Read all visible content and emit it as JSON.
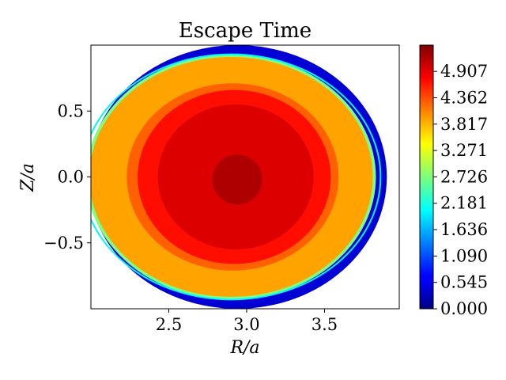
{
  "chart_data": {
    "type": "heatmap",
    "title": "Escape Time",
    "xlabel": "R/a",
    "ylabel": "Z/a",
    "xlim": [
      2.0,
      3.98
    ],
    "ylim": [
      -1.0,
      1.0
    ],
    "xticks": [
      2.5,
      3.0,
      3.5
    ],
    "xtick_labels": [
      "2.5",
      "3.0",
      "3.5"
    ],
    "yticks": [
      0.5,
      0.0,
      -0.5
    ],
    "ytick_labels": [
      "0.5",
      "0.0",
      "−0.5"
    ],
    "colormap": "jet",
    "colorbar": {
      "min": 0.0,
      "max": 5.45,
      "ticks": [
        0.0,
        0.545,
        1.09,
        1.636,
        2.181,
        2.726,
        3.271,
        3.817,
        4.362,
        4.907
      ],
      "tick_labels": [
        "0.000",
        "0.545",
        "1.090",
        "1.636",
        "2.181",
        "2.726",
        "3.271",
        "3.817",
        "4.362",
        "4.907"
      ]
    },
    "field": {
      "description_free": true,
      "outer_boundary": {
        "center": [
          2.94,
          0.0
        ],
        "radius_R": 0.96,
        "radius_Z": 1.0
      },
      "shifted_boundary": {
        "center": [
          2.9,
          0.0
        ],
        "radius_R": 0.96,
        "radius_Z": 0.93
      },
      "regions": [
        {
          "center": [
            2.94,
            0.0
          ],
          "radius_R": 0.96,
          "radius_Z": 1.0,
          "value": 0.45
        },
        {
          "center": [
            2.9,
            0.0
          ],
          "radius_R": 0.93,
          "radius_Z": 0.93,
          "value": 2.7
        },
        {
          "center": [
            2.9,
            0.0
          ],
          "radius_R": 0.91,
          "radius_Z": 0.91,
          "value": 3.9
        },
        {
          "center": [
            2.91,
            0.0
          ],
          "radius_R": 0.68,
          "radius_Z": 0.71,
          "value": 4.25
        },
        {
          "center": [
            2.92,
            0.0
          ],
          "radius_R": 0.62,
          "radius_Z": 0.66,
          "value": 4.7
        },
        {
          "center": [
            2.93,
            0.0
          ],
          "radius_R": 0.5,
          "radius_Z": 0.55,
          "value": 4.95
        },
        {
          "center": [
            2.94,
            -0.02
          ],
          "radius_R": 0.16,
          "radius_Z": 0.19,
          "value": 5.2
        }
      ]
    }
  }
}
